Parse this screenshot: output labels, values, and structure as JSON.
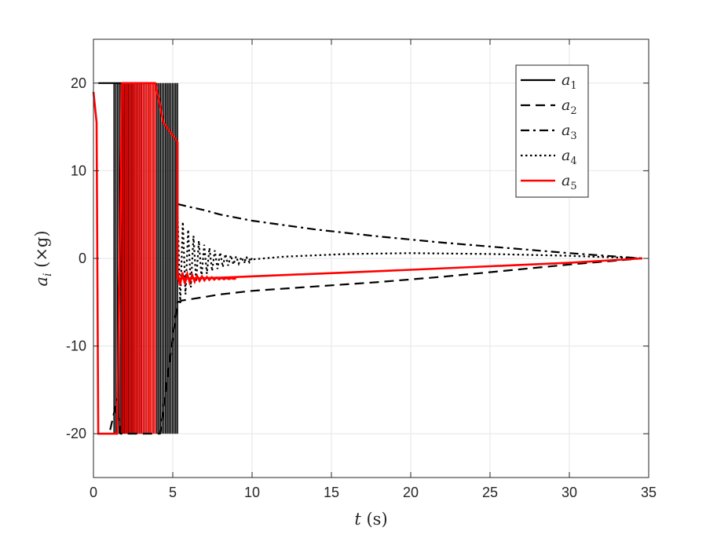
{
  "chart_data": {
    "type": "line",
    "title": "",
    "xlabel": "t (s)",
    "ylabel": "a_i (×g)",
    "xlabel_parts": {
      "var": "t",
      "unit": "(s)"
    },
    "ylabel_parts": {
      "var": "a",
      "sub": "i",
      "unit": "(×g)"
    },
    "xlim": [
      0,
      35
    ],
    "ylim": [
      -25,
      25
    ],
    "xticks": [
      0,
      5,
      10,
      15,
      20,
      25,
      30,
      35
    ],
    "yticks": [
      -20,
      -10,
      0,
      10,
      20
    ],
    "xtick_labels": [
      "0",
      "5",
      "10",
      "15",
      "20",
      "25",
      "30",
      "35"
    ],
    "ytick_labels": [
      "-20",
      "-10",
      "0",
      "10",
      "20"
    ],
    "grid": true,
    "legend_position": "top-right",
    "series": [
      {
        "name": "a1",
        "legend_main": "a",
        "legend_sub": "1",
        "color": "#000000",
        "style": "solid",
        "width": 2.2,
        "x": [
          0.3,
          1.3,
          3.6
        ],
        "y": [
          20,
          20,
          20
        ]
      },
      {
        "name": "a2",
        "legend_main": "a",
        "legend_sub": "2",
        "color": "#000000",
        "style": "dashed",
        "width": 2.2,
        "x": [
          0.3,
          1.0,
          1.5,
          1.7,
          4.2,
          5.3,
          5.6,
          7,
          8,
          10,
          14,
          18,
          22,
          26,
          30,
          34.6
        ],
        "y": [
          -20,
          -20,
          -16,
          -20,
          -20,
          -5,
          -4.8,
          -4.4,
          -4.1,
          -3.7,
          -3.2,
          -2.7,
          -2.1,
          -1.4,
          -0.7,
          0
        ]
      },
      {
        "name": "a3",
        "legend_main": "a",
        "legend_sub": "3",
        "color": "#000000",
        "style": "dashdot",
        "width": 2.2,
        "x": [
          5.3,
          6,
          7,
          8,
          10,
          14,
          18,
          22,
          26,
          30,
          34.6
        ],
        "y": [
          6.2,
          5.9,
          5.5,
          5.0,
          4.3,
          3.3,
          2.5,
          1.8,
          1.2,
          0.6,
          0
        ]
      },
      {
        "name": "a4",
        "legend_main": "a",
        "legend_sub": "4",
        "color": "#000000",
        "style": "dotted",
        "width": 2.2,
        "x": [
          9.5,
          12,
          16,
          20,
          25,
          30,
          34.6
        ],
        "y": [
          -0.2,
          0.2,
          0.5,
          0.6,
          0.5,
          0.3,
          0
        ]
      },
      {
        "name": "a5",
        "legend_main": "a",
        "legend_sub": "5",
        "color": "#ff0000",
        "style": "solid",
        "width": 2.6,
        "x": [
          0,
          0.2,
          0.3,
          1.5,
          1.8,
          3.9,
          4.2,
          4.4,
          5.3,
          5.3,
          8,
          12,
          16,
          20,
          25,
          30,
          34.6
        ],
        "y": [
          19,
          15.5,
          -20,
          -20,
          20,
          20,
          17.5,
          15.5,
          13.3,
          -2.3,
          -2.2,
          -1.9,
          -1.6,
          -1.3,
          -0.9,
          -0.5,
          0
        ]
      }
    ],
    "oscillation_bands": [
      {
        "series": "a4",
        "color": "#000000",
        "x_start": 1.3,
        "x_end": 5.3,
        "y_min": -20,
        "y_max": 20
      },
      {
        "series": "a5",
        "color": "#ff0000",
        "x_start": 1.8,
        "x_end": 3.9,
        "y_min": -20,
        "y_max": 20
      }
    ],
    "decaying_oscillations": [
      {
        "series": "a4",
        "color": "#000000",
        "x_start": 5.3,
        "x_end": 10.0,
        "amplitude_start": 5.5,
        "center": -0.2,
        "cycles": 14
      },
      {
        "series": "a5",
        "color": "#ff0000",
        "x_start": 5.3,
        "x_end": 9.0,
        "amplitude_start": 0.9,
        "center": -2.3,
        "cycles": 12
      }
    ]
  }
}
